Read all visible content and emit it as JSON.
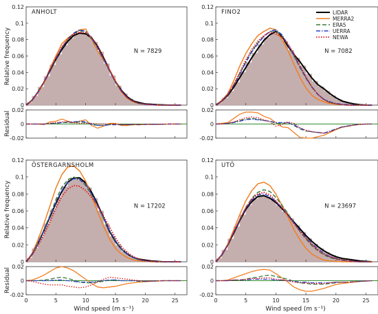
{
  "figure": {
    "y_axis_label_top": "Relative frequency",
    "y_axis_label_bottom": "Residual",
    "x_axis_label": "Wind speed (m s⁻¹)"
  },
  "colors": {
    "LIDAR": "#000000",
    "MERRA2": "#f07f22",
    "ERA5": "#3c7a3c",
    "UERRA": "#2b3fcc",
    "NEWA": "#e01010",
    "hist_fill": "#bba0a0",
    "hist_stroke": "#c9b6b6",
    "zero_line": "#2e8b2e"
  },
  "legend": [
    {
      "name": "LIDAR",
      "dash": "solid"
    },
    {
      "name": "MERRA2",
      "dash": "solid"
    },
    {
      "name": "ERA5",
      "dash": "dashed"
    },
    {
      "name": "UERRA",
      "dash": "dashdot"
    },
    {
      "name": "NEWA",
      "dash": "dotted"
    }
  ],
  "chart_data": [
    {
      "type": "line",
      "site": "ANHOLT",
      "n_label": "N = 7829",
      "xlim": [
        0,
        27
      ],
      "ylim": [
        0,
        0.12
      ],
      "residual_ylim": [
        -0.02,
        0.02
      ],
      "xticks": [
        0,
        5,
        10,
        15,
        20,
        25
      ],
      "yticks": [
        "0",
        "0.02",
        "0.04",
        "0.06",
        "0.08",
        "0.1",
        "0.12"
      ],
      "residual_yticks": [
        "-0.02",
        "0",
        "0.02"
      ],
      "x": [
        0,
        1,
        2,
        3,
        4,
        5,
        6,
        7,
        8,
        9,
        10,
        11,
        12,
        13,
        14,
        15,
        16,
        17,
        18,
        19,
        20,
        21,
        22,
        23,
        24,
        25,
        26
      ],
      "series": [
        {
          "name": "LIDAR",
          "values": [
            0.0,
            0.006,
            0.016,
            0.028,
            0.042,
            0.056,
            0.068,
            0.078,
            0.085,
            0.088,
            0.087,
            0.082,
            0.072,
            0.058,
            0.043,
            0.029,
            0.018,
            0.01,
            0.005,
            0.003,
            0.0015,
            0.001,
            0.0005,
            0.0003,
            0.0,
            0.0,
            0.0
          ]
        },
        {
          "name": "MERRA2",
          "values": [
            0.0,
            0.006,
            0.016,
            0.027,
            0.045,
            0.06,
            0.075,
            0.082,
            0.087,
            0.092,
            0.093,
            0.08,
            0.066,
            0.055,
            0.044,
            0.03,
            0.016,
            0.008,
            0.004,
            0.002,
            0.001,
            0.0005,
            0.0,
            0.0,
            0.0,
            0.0,
            0.0
          ]
        },
        {
          "name": "ERA5",
          "values": [
            0.0,
            0.006,
            0.016,
            0.028,
            0.043,
            0.057,
            0.07,
            0.08,
            0.087,
            0.091,
            0.089,
            0.081,
            0.07,
            0.056,
            0.042,
            0.028,
            0.017,
            0.009,
            0.004,
            0.002,
            0.001,
            0.0005,
            0.0,
            0.0,
            0.0,
            0.0,
            0.0
          ]
        },
        {
          "name": "UERRA",
          "values": [
            0.0,
            0.006,
            0.016,
            0.028,
            0.043,
            0.057,
            0.07,
            0.081,
            0.088,
            0.092,
            0.09,
            0.082,
            0.07,
            0.056,
            0.042,
            0.028,
            0.017,
            0.009,
            0.0045,
            0.002,
            0.001,
            0.0005,
            0.0,
            0.0,
            0.0,
            0.0,
            0.0
          ]
        },
        {
          "name": "NEWA",
          "values": [
            0.0,
            0.006,
            0.016,
            0.028,
            0.043,
            0.058,
            0.071,
            0.081,
            0.087,
            0.089,
            0.088,
            0.083,
            0.072,
            0.058,
            0.043,
            0.029,
            0.017,
            0.009,
            0.0045,
            0.002,
            0.001,
            0.0005,
            0.0,
            0.0,
            0.0,
            0.0,
            0.0
          ]
        }
      ]
    },
    {
      "type": "line",
      "site": "FINO2",
      "n_label": "N = 7082",
      "xlim": [
        0,
        27
      ],
      "ylim": [
        0,
        0.12
      ],
      "residual_ylim": [
        -0.02,
        0.02
      ],
      "xticks": [
        0,
        5,
        10,
        15,
        20,
        25
      ],
      "yticks": [
        "0",
        "0.02",
        "0.04",
        "0.06",
        "0.08",
        "0.1",
        "0.12"
      ],
      "residual_yticks": [
        "-0.02",
        "0",
        "0.02"
      ],
      "x": [
        0,
        1,
        2,
        3,
        4,
        5,
        6,
        7,
        8,
        9,
        10,
        11,
        12,
        13,
        14,
        15,
        16,
        17,
        18,
        19,
        20,
        21,
        22,
        23,
        24,
        25,
        26
      ],
      "series": [
        {
          "name": "LIDAR",
          "values": [
            0.0,
            0.005,
            0.012,
            0.022,
            0.034,
            0.046,
            0.058,
            0.069,
            0.079,
            0.086,
            0.09,
            0.084,
            0.072,
            0.062,
            0.053,
            0.043,
            0.033,
            0.025,
            0.02,
            0.014,
            0.009,
            0.005,
            0.003,
            0.0015,
            0.0005,
            0.0,
            0.0
          ]
        },
        {
          "name": "MERRA2",
          "values": [
            0.0,
            0.006,
            0.014,
            0.03,
            0.048,
            0.063,
            0.075,
            0.085,
            0.09,
            0.094,
            0.092,
            0.08,
            0.067,
            0.05,
            0.034,
            0.021,
            0.012,
            0.007,
            0.004,
            0.002,
            0.001,
            0.0005,
            0.0,
            0.0,
            0.0,
            0.0,
            0.0
          ]
        },
        {
          "name": "ERA5",
          "values": [
            0.0,
            0.005,
            0.013,
            0.025,
            0.039,
            0.053,
            0.066,
            0.076,
            0.084,
            0.09,
            0.091,
            0.085,
            0.074,
            0.06,
            0.046,
            0.033,
            0.022,
            0.013,
            0.007,
            0.003,
            0.0015,
            0.0005,
            0.0,
            0.0,
            0.0,
            0.0,
            0.0
          ]
        },
        {
          "name": "UERRA",
          "values": [
            0.0,
            0.005,
            0.013,
            0.024,
            0.038,
            0.052,
            0.065,
            0.075,
            0.084,
            0.09,
            0.092,
            0.086,
            0.074,
            0.061,
            0.047,
            0.034,
            0.022,
            0.013,
            0.007,
            0.004,
            0.002,
            0.001,
            0.0005,
            0.0,
            0.0,
            0.0,
            0.0
          ]
        },
        {
          "name": "NEWA",
          "values": [
            0.0,
            0.005,
            0.013,
            0.025,
            0.04,
            0.055,
            0.068,
            0.078,
            0.085,
            0.089,
            0.087,
            0.083,
            0.075,
            0.063,
            0.048,
            0.034,
            0.022,
            0.013,
            0.007,
            0.003,
            0.0015,
            0.0005,
            0.0,
            0.0,
            0.0,
            0.0,
            0.0
          ]
        }
      ]
    },
    {
      "type": "line",
      "site": "ÖSTERGARNSHOLM",
      "n_label": "N = 17202",
      "xlim": [
        0,
        27
      ],
      "ylim": [
        0,
        0.12
      ],
      "residual_ylim": [
        -0.02,
        0.02
      ],
      "xticks": [
        0,
        5,
        10,
        15,
        20,
        25
      ],
      "yticks": [
        "0",
        "0.02",
        "0.04",
        "0.06",
        "0.08",
        "0.1",
        "0.12"
      ],
      "residual_yticks": [
        "-0.02",
        "0",
        "0.02"
      ],
      "x": [
        0,
        1,
        2,
        3,
        4,
        5,
        6,
        7,
        8,
        9,
        10,
        11,
        12,
        13,
        14,
        15,
        16,
        17,
        18,
        19,
        20,
        21,
        22,
        23,
        24,
        25,
        26
      ],
      "series": [
        {
          "name": "LIDAR",
          "values": [
            0.0,
            0.009,
            0.022,
            0.037,
            0.053,
            0.069,
            0.083,
            0.094,
            0.099,
            0.099,
            0.093,
            0.082,
            0.068,
            0.052,
            0.036,
            0.024,
            0.015,
            0.009,
            0.005,
            0.003,
            0.002,
            0.001,
            0.0005,
            0.0,
            0.0,
            0.0,
            0.0
          ]
        },
        {
          "name": "MERRA2",
          "values": [
            0.0,
            0.01,
            0.026,
            0.045,
            0.066,
            0.087,
            0.103,
            0.112,
            0.113,
            0.107,
            0.095,
            0.078,
            0.059,
            0.042,
            0.027,
            0.016,
            0.009,
            0.005,
            0.002,
            0.001,
            0.0005,
            0.0,
            0.0,
            0.0,
            0.0,
            0.0,
            0.0
          ]
        },
        {
          "name": "ERA5",
          "values": [
            0.0,
            0.009,
            0.022,
            0.038,
            0.055,
            0.073,
            0.088,
            0.097,
            0.1,
            0.097,
            0.09,
            0.079,
            0.066,
            0.051,
            0.037,
            0.025,
            0.015,
            0.009,
            0.005,
            0.002,
            0.001,
            0.0005,
            0.0,
            0.0,
            0.0,
            0.0,
            0.0
          ]
        },
        {
          "name": "UERRA",
          "values": [
            0.0,
            0.009,
            0.022,
            0.037,
            0.053,
            0.07,
            0.084,
            0.094,
            0.098,
            0.097,
            0.091,
            0.08,
            0.067,
            0.052,
            0.037,
            0.025,
            0.015,
            0.009,
            0.005,
            0.0025,
            0.001,
            0.0005,
            0.0,
            0.0,
            0.0,
            0.0,
            0.0
          ]
        },
        {
          "name": "NEWA",
          "values": [
            0.0,
            0.008,
            0.019,
            0.032,
            0.047,
            0.063,
            0.077,
            0.086,
            0.09,
            0.089,
            0.084,
            0.076,
            0.066,
            0.054,
            0.041,
            0.028,
            0.018,
            0.011,
            0.006,
            0.003,
            0.0015,
            0.0005,
            0.0,
            0.0,
            0.0,
            0.0,
            0.0
          ]
        }
      ]
    },
    {
      "type": "line",
      "site": "UTÖ",
      "n_label": "N = 23697",
      "xlim": [
        0,
        27
      ],
      "ylim": [
        0,
        0.12
      ],
      "residual_ylim": [
        -0.02,
        0.02
      ],
      "xticks": [
        0,
        5,
        10,
        15,
        20,
        25
      ],
      "yticks": [
        "0",
        "0.02",
        "0.04",
        "0.06",
        "0.08",
        "0.1",
        "0.12"
      ],
      "residual_yticks": [
        "-0.02",
        "0",
        "0.02"
      ],
      "x": [
        0,
        1,
        2,
        3,
        4,
        5,
        6,
        7,
        8,
        9,
        10,
        11,
        12,
        13,
        14,
        15,
        16,
        17,
        18,
        19,
        20,
        21,
        22,
        23,
        24,
        25,
        26
      ],
      "series": [
        {
          "name": "LIDAR",
          "values": [
            0.0,
            0.008,
            0.02,
            0.034,
            0.049,
            0.062,
            0.071,
            0.077,
            0.078,
            0.075,
            0.07,
            0.063,
            0.055,
            0.047,
            0.039,
            0.031,
            0.024,
            0.018,
            0.013,
            0.009,
            0.006,
            0.004,
            0.003,
            0.002,
            0.001,
            0.0005,
            0.0
          ]
        },
        {
          "name": "MERRA2",
          "values": [
            0.0,
            0.008,
            0.021,
            0.038,
            0.056,
            0.072,
            0.084,
            0.092,
            0.094,
            0.09,
            0.08,
            0.067,
            0.053,
            0.038,
            0.026,
            0.016,
            0.009,
            0.005,
            0.002,
            0.001,
            0.0005,
            0.0,
            0.0,
            0.0,
            0.0,
            0.0,
            0.0
          ]
        },
        {
          "name": "ERA5",
          "values": [
            0.0,
            0.008,
            0.02,
            0.035,
            0.05,
            0.064,
            0.075,
            0.082,
            0.085,
            0.083,
            0.076,
            0.067,
            0.057,
            0.046,
            0.036,
            0.027,
            0.019,
            0.013,
            0.008,
            0.005,
            0.003,
            0.002,
            0.001,
            0.0005,
            0.0,
            0.0,
            0.0
          ]
        },
        {
          "name": "UERRA",
          "values": [
            0.0,
            0.008,
            0.02,
            0.035,
            0.05,
            0.063,
            0.073,
            0.079,
            0.08,
            0.077,
            0.071,
            0.064,
            0.055,
            0.046,
            0.037,
            0.029,
            0.021,
            0.015,
            0.01,
            0.006,
            0.004,
            0.002,
            0.001,
            0.0005,
            0.0,
            0.0,
            0.0
          ]
        },
        {
          "name": "NEWA",
          "values": [
            0.0,
            0.008,
            0.02,
            0.035,
            0.05,
            0.064,
            0.074,
            0.08,
            0.082,
            0.079,
            0.072,
            0.064,
            0.055,
            0.045,
            0.036,
            0.028,
            0.02,
            0.014,
            0.009,
            0.006,
            0.004,
            0.002,
            0.001,
            0.0005,
            0.0,
            0.0,
            0.0
          ]
        }
      ]
    }
  ]
}
